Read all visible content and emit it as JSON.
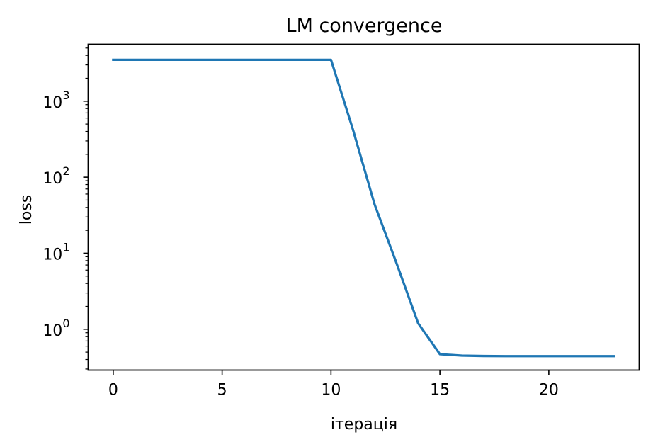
{
  "chart_data": {
    "type": "line",
    "title": "LM convergence",
    "xlabel": "ітерація",
    "ylabel": "loss",
    "yscale": "log",
    "xlim": [
      -1.15,
      24.15
    ],
    "ylim": [
      0.29,
      5600
    ],
    "x_ticks": [
      0,
      5,
      10,
      15,
      20
    ],
    "y_ticks": [
      {
        "value": 1,
        "base": "10",
        "exp": "0"
      },
      {
        "value": 10,
        "base": "10",
        "exp": "1"
      },
      {
        "value": 100,
        "base": "10",
        "exp": "2"
      },
      {
        "value": 1000,
        "base": "10",
        "exp": "3"
      }
    ],
    "grid": false,
    "series": [
      {
        "color": "#1f77b4",
        "x": [
          0,
          1,
          2,
          3,
          4,
          5,
          6,
          7,
          8,
          9,
          10,
          11,
          12,
          13,
          14,
          15,
          16,
          17,
          18,
          19,
          20,
          21,
          22,
          23
        ],
        "y": [
          3500,
          3500,
          3500,
          3500,
          3500,
          3500,
          3500,
          3500,
          3500,
          3500,
          3500,
          430,
          44,
          7.5,
          1.2,
          0.47,
          0.45,
          0.445,
          0.443,
          0.443,
          0.443,
          0.443,
          0.443,
          0.443
        ]
      }
    ]
  }
}
